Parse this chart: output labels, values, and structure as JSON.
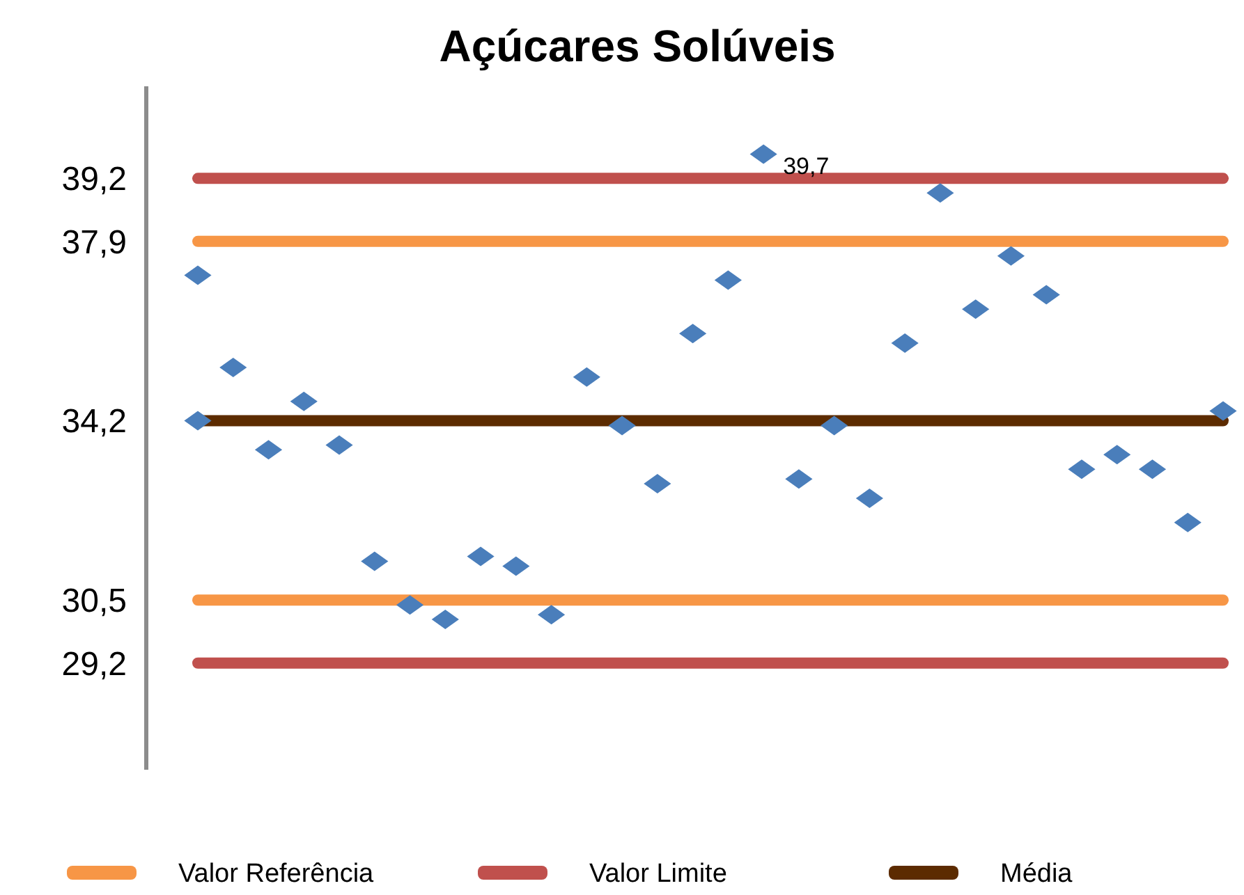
{
  "chart_data": {
    "type": "scatter",
    "title": "Açúcares Solúveis",
    "categories": [
      null,
      null,
      null,
      null,
      null,
      null,
      null,
      null,
      null,
      null,
      null,
      null,
      null,
      null,
      null,
      null,
      null,
      null,
      null,
      null,
      null,
      null,
      null,
      null,
      null,
      null,
      null,
      null,
      null,
      null
    ],
    "series": [
      {
        "type": "line",
        "name": "Valor Referência",
        "color": "#f79646",
        "marker": "none",
        "values": [
          37.9,
          37.9,
          37.9,
          37.9,
          37.9,
          37.9,
          37.9,
          37.9,
          37.9,
          37.9,
          37.9,
          37.9,
          37.9,
          37.9,
          37.9,
          37.9,
          37.9,
          37.9,
          37.9,
          37.9,
          37.9,
          37.9,
          37.9,
          37.9,
          37.9,
          37.9,
          37.9,
          37.9,
          37.9,
          37.9
        ]
      },
      {
        "type": "line",
        "color": "#f79646",
        "marker": "none",
        "values": [
          30.5,
          30.5,
          30.5,
          30.5,
          30.5,
          30.5,
          30.5,
          30.5,
          30.5,
          30.5,
          30.5,
          30.5,
          30.5,
          30.5,
          30.5,
          30.5,
          30.5,
          30.5,
          30.5,
          30.5,
          30.5,
          30.5,
          30.5,
          30.5,
          30.5,
          30.5,
          30.5,
          30.5,
          30.5,
          30.5
        ]
      },
      {
        "type": "line",
        "name": "Valor Limite",
        "color": "#c0504d",
        "marker": "none",
        "values": [
          39.2,
          39.2,
          39.2,
          39.2,
          39.2,
          39.2,
          39.2,
          39.2,
          39.2,
          39.2,
          39.2,
          39.2,
          39.2,
          39.2,
          39.2,
          39.2,
          39.2,
          39.2,
          39.2,
          39.2,
          39.2,
          39.2,
          39.2,
          39.2,
          39.2,
          39.2,
          39.2,
          39.2,
          39.2,
          39.2
        ]
      },
      {
        "type": "line",
        "color": "#c0504d",
        "marker": "none",
        "values": [
          29.2,
          29.2,
          29.2,
          29.2,
          29.2,
          29.2,
          29.2,
          29.2,
          29.2,
          29.2,
          29.2,
          29.2,
          29.2,
          29.2,
          29.2,
          29.2,
          29.2,
          29.2,
          29.2,
          29.2,
          29.2,
          29.2,
          29.2,
          29.2,
          29.2,
          29.2,
          29.2,
          29.2,
          29.2,
          29.2
        ]
      },
      {
        "type": "line",
        "name": "Média",
        "color": "#5c2b00",
        "marker": "none",
        "values": [
          34.2,
          34.2,
          34.2,
          34.2,
          34.2,
          34.2,
          34.2,
          34.2,
          34.2,
          34.2,
          34.2,
          34.2,
          34.2,
          34.2,
          34.2,
          34.2,
          34.2,
          34.2,
          34.2,
          34.2,
          34.2,
          34.2,
          34.2,
          34.2,
          34.2,
          34.2,
          34.2,
          34.2,
          34.2,
          34.2
        ]
      },
      {
        "color": "#4a7ebb",
        "values": [
          37.2,
          null,
          null,
          null,
          null,
          null,
          null,
          null,
          null,
          null,
          null,
          null,
          null,
          null,
          null,
          null,
          null,
          null,
          null,
          null,
          null,
          null,
          null,
          null,
          null,
          null,
          null,
          null,
          null,
          null
        ]
      },
      {
        "color": "#4a7ebb",
        "values": [
          34.2,
          35.3,
          33.6,
          34.6,
          33.7,
          31.3,
          30.4,
          30.1,
          31.4,
          31.2,
          30.2,
          35.1,
          34.1,
          32.9,
          36.0,
          37.1,
          39.7,
          33.0,
          34.1,
          32.6,
          35.8,
          38.9,
          36.5,
          37.6,
          36.8,
          33.2,
          33.5,
          33.2,
          32.1,
          34.4
        ],
        "value_labels": [
          null,
          null,
          null,
          null,
          null,
          null,
          null,
          null,
          null,
          null,
          null,
          null,
          null,
          null,
          null,
          null,
          "39,7",
          null,
          null,
          null,
          null,
          null,
          null,
          null,
          null,
          null,
          null,
          null,
          null,
          null
        ]
      }
    ],
    "marker": "diamond",
    "ylim": [
      27,
      41.1
    ],
    "yticks": [
      {
        "value": 29.2,
        "label": "29,2"
      },
      {
        "value": 30.5,
        "label": "30,5"
      },
      {
        "value": 34.2,
        "label": "34,2"
      },
      {
        "value": 37.9,
        "label": "37,9"
      },
      {
        "value": 39.2,
        "label": "39,2"
      }
    ],
    "tick_labels": "y",
    "legend": "bottom"
  }
}
